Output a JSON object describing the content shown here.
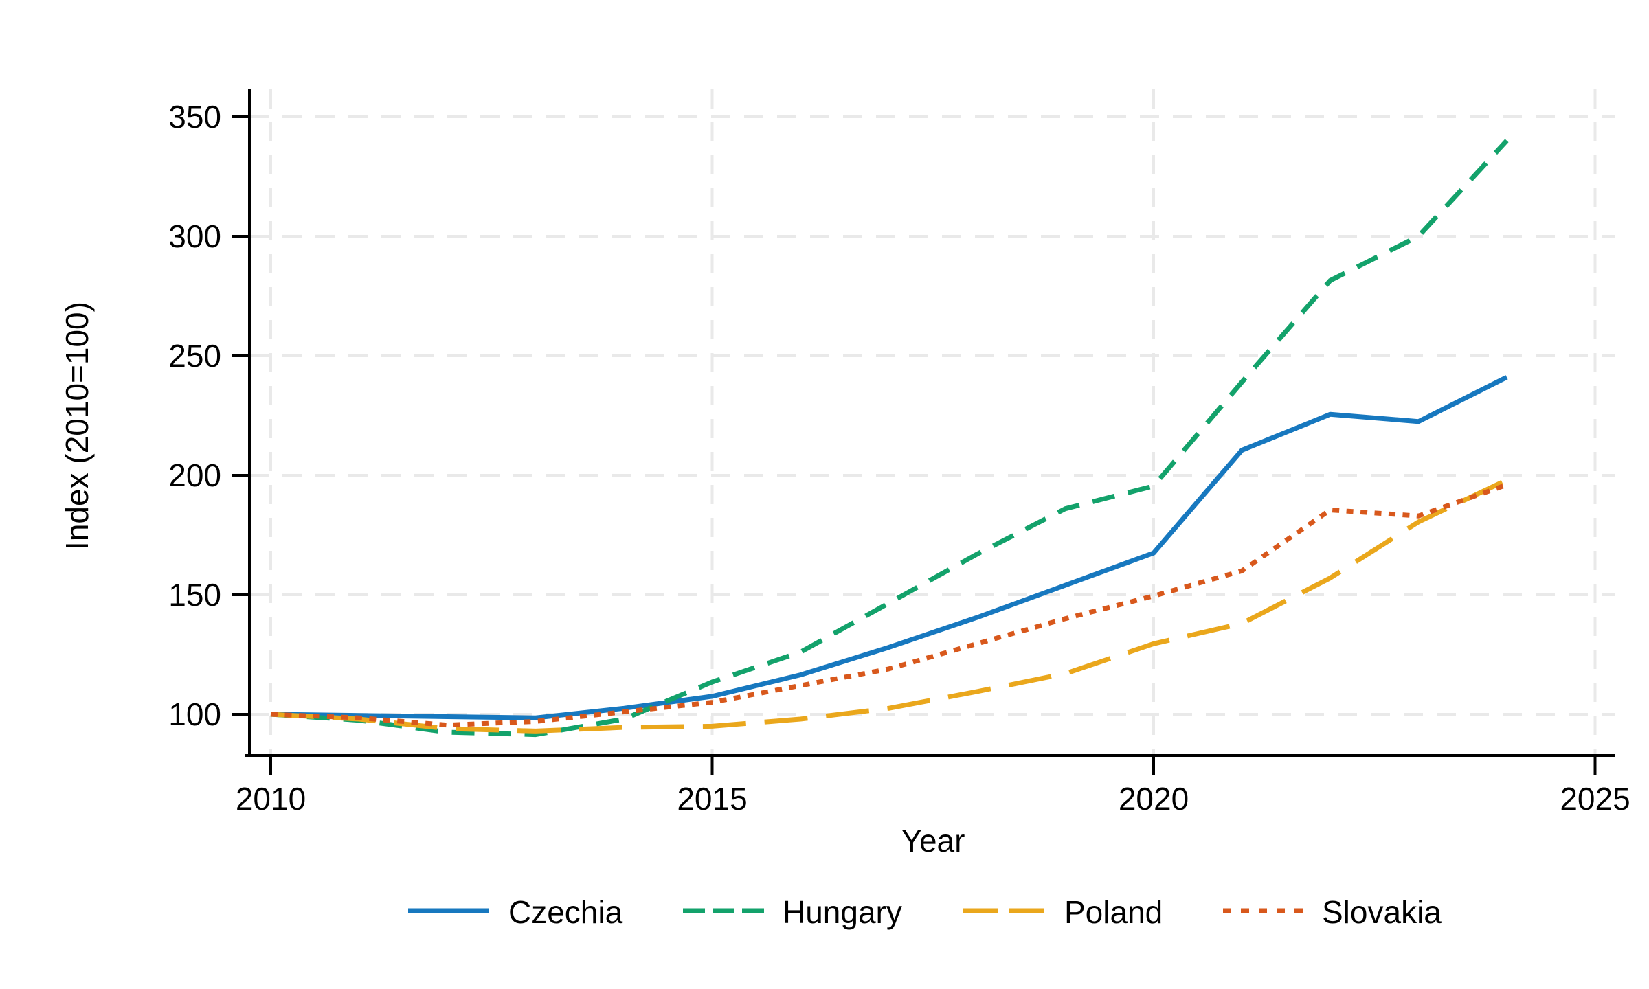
{
  "chart_data": {
    "type": "line",
    "title": "",
    "xlabel": "Year",
    "ylabel": "Index (2010=100)",
    "x": [
      2010,
      2011,
      2012,
      2013,
      2014,
      2015,
      2016,
      2017,
      2018,
      2019,
      2020,
      2021,
      2022,
      2023,
      2024
    ],
    "xticks": [
      2010,
      2015,
      2020,
      2025
    ],
    "yticks": [
      100,
      150,
      200,
      250,
      300,
      350
    ],
    "xlim": [
      2009.7,
      2025.2
    ],
    "ylim": [
      82,
      359
    ],
    "grid": "both-dashed-lightgray",
    "legend_position": "bottom-center",
    "series": [
      {
        "name": "Czechia",
        "color": "#1778bf",
        "style": "solid",
        "values": [
          100,
          99.5,
          99,
          98.5,
          102.5,
          107.5,
          116.5,
          128,
          140.5,
          154,
          167.5,
          210.5,
          225.5,
          222.5,
          241
        ]
      },
      {
        "name": "Hungary",
        "color": "#13a26b",
        "style": "dashed",
        "values": [
          100,
          97.5,
          92.5,
          91.5,
          98,
          113.5,
          126,
          146.5,
          167,
          186,
          195.5,
          239,
          281.5,
          300,
          340
        ]
      },
      {
        "name": "Poland",
        "color": "#eaa71c",
        "style": "longdash",
        "values": [
          100,
          98,
          94,
          93,
          94.5,
          95,
          98,
          102.5,
          109.5,
          117,
          129.5,
          138,
          157,
          180.5,
          198
        ]
      },
      {
        "name": "Slovakia",
        "color": "#d8581c",
        "style": "dotted",
        "values": [
          100,
          98.5,
          95.5,
          97,
          101,
          105,
          112,
          119,
          129.5,
          140,
          149.5,
          160,
          185.5,
          183,
          196
        ]
      }
    ]
  }
}
